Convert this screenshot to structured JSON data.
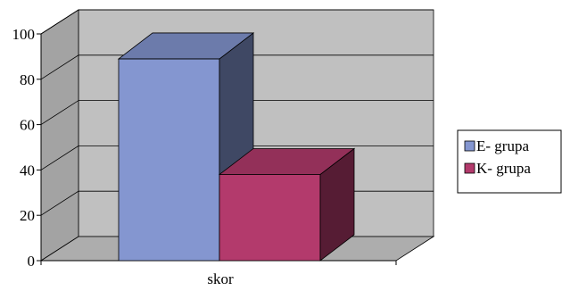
{
  "chart_data": {
    "type": "bar",
    "title": "",
    "xlabel": "",
    "ylabel": "",
    "categories": [
      "skor"
    ],
    "series": [
      {
        "name": "E- grupa",
        "values": [
          89
        ],
        "color": "#8496D0"
      },
      {
        "name": "K- grupa",
        "values": [
          38
        ],
        "color": "#B33A6C"
      }
    ],
    "ylim": [
      0,
      100
    ],
    "yticks": [
      "0",
      "20",
      "40",
      "60",
      "80",
      "100"
    ],
    "grid": true,
    "three_d": true,
    "background_color": "#C0C0C0",
    "legend_position": "right"
  }
}
